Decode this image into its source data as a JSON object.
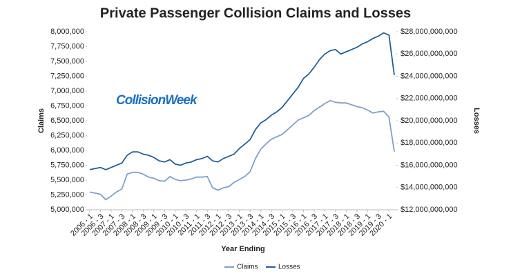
{
  "chart_data": {
    "type": "line",
    "title": "Private  Passenger Collision Claims and Losses",
    "watermark": "CollisionWeek",
    "x_label": "Year Ending",
    "y_label": "Claims",
    "y2_label": "Losses",
    "categories": [
      "2006 - 1",
      null,
      "2006 - 3",
      null,
      "2007 - 1",
      null,
      "2007 - 3",
      null,
      "2008 - 1",
      null,
      "2008 - 3",
      null,
      "2009 - 1",
      null,
      "2009 - 3",
      null,
      "2010 - 1",
      null,
      "2010 - 3",
      null,
      "2011 - 1",
      null,
      "2011 - 3",
      null,
      "2012 - 1",
      null,
      "2012 - 3",
      null,
      "2013 - 1",
      null,
      "2013 - 3",
      null,
      "2014 - 1",
      null,
      "2014 - 3",
      null,
      "2015 - 1",
      null,
      "2015 - 3",
      null,
      "2016 - 1",
      null,
      "2016 - 3",
      null,
      "2017 - 1",
      null,
      "2017 - 3",
      null,
      "2018 - 1",
      null,
      "2018 - 3",
      null,
      "2019 - 1",
      null,
      "2019 - 3",
      null,
      "2020 - 1",
      null
    ],
    "series": [
      {
        "name": "Claims",
        "color": "#7f9fc9",
        "axis": "y",
        "values": [
          5300000,
          5280000,
          5260000,
          5170000,
          5230000,
          5300000,
          5350000,
          5600000,
          5630000,
          5630000,
          5600000,
          5550000,
          5530000,
          5490000,
          5480000,
          5560000,
          5510000,
          5490000,
          5500000,
          5520000,
          5550000,
          5550000,
          5560000,
          5370000,
          5330000,
          5370000,
          5390000,
          5460000,
          5510000,
          5560000,
          5640000,
          5860000,
          6020000,
          6110000,
          6190000,
          6230000,
          6270000,
          6350000,
          6430000,
          6510000,
          6550000,
          6590000,
          6670000,
          6730000,
          6790000,
          6840000,
          6810000,
          6800000,
          6800000,
          6770000,
          6740000,
          6720000,
          6680000,
          6630000,
          6650000,
          6660000,
          6560000,
          5980000
        ]
      },
      {
        "name": "Losses",
        "color": "#1f5f9b",
        "axis": "y2",
        "values": [
          15600000000,
          15700000000,
          15800000000,
          15600000000,
          15800000000,
          16000000000,
          16200000000,
          16900000000,
          17200000000,
          17200000000,
          17000000000,
          16900000000,
          16700000000,
          16400000000,
          16300000000,
          16500000000,
          16100000000,
          16000000000,
          16200000000,
          16300000000,
          16500000000,
          16600000000,
          16800000000,
          16400000000,
          16300000000,
          16600000000,
          16800000000,
          17000000000,
          17500000000,
          17900000000,
          18300000000,
          19200000000,
          19800000000,
          20100000000,
          20500000000,
          20800000000,
          21200000000,
          21800000000,
          22400000000,
          23000000000,
          23800000000,
          24200000000,
          24800000000,
          25500000000,
          26000000000,
          26300000000,
          26400000000,
          26000000000,
          26200000000,
          26400000000,
          26600000000,
          26900000000,
          27100000000,
          27400000000,
          27600000000,
          27900000000,
          27700000000,
          24100000000
        ]
      }
    ],
    "ylim": [
      5000000,
      8000000
    ],
    "yticks": [
      {
        "value": 5000000,
        "label": "5,000,000"
      },
      {
        "value": 5250000,
        "label": "5,250,000"
      },
      {
        "value": 5500000,
        "label": "5,500,000"
      },
      {
        "value": 5750000,
        "label": "5,750,000"
      },
      {
        "value": 6000000,
        "label": "6,000,000"
      },
      {
        "value": 6250000,
        "label": "6,250,000"
      },
      {
        "value": 6500000,
        "label": "6,500,000"
      },
      {
        "value": 6750000,
        "label": "6,750,000"
      },
      {
        "value": 7000000,
        "label": "7,000,000"
      },
      {
        "value": 7250000,
        "label": "7,250,000"
      },
      {
        "value": 7500000,
        "label": "7,500,000"
      },
      {
        "value": 7750000,
        "label": "7,750,000"
      },
      {
        "value": 8000000,
        "label": "8,000,000"
      }
    ],
    "y2lim": [
      12000000000,
      28000000000
    ],
    "y2ticks": [
      {
        "value": 12000000000,
        "label": "$12,000,000,000"
      },
      {
        "value": 14000000000,
        "label": "$14,000,000,000"
      },
      {
        "value": 16000000000,
        "label": "$16,000,000,000"
      },
      {
        "value": 18000000000,
        "label": "$18,000,000,000"
      },
      {
        "value": 20000000000,
        "label": "$20,000,000,000"
      },
      {
        "value": 22000000000,
        "label": "$22,000,000,000"
      },
      {
        "value": 24000000000,
        "label": "$24,000,000,000"
      },
      {
        "value": 26000000000,
        "label": "$26,000,000,000"
      },
      {
        "value": 28000000000,
        "label": "$28,000,000,000"
      }
    ],
    "grid": false,
    "legend": "bottom"
  }
}
